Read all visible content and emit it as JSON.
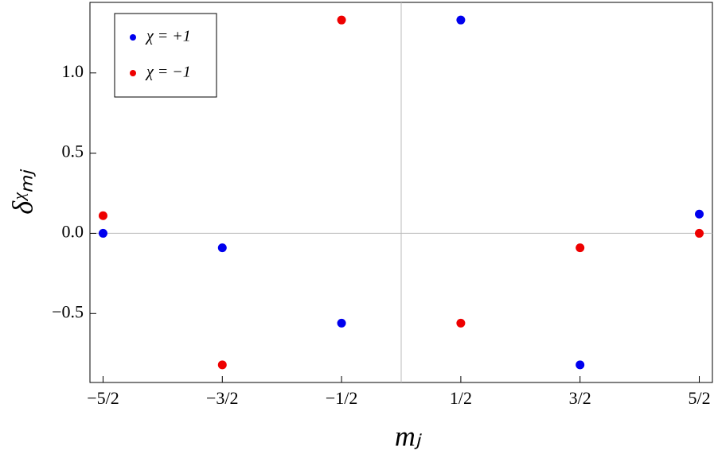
{
  "chart_data": {
    "type": "scatter",
    "x_label": "mⱼ",
    "y_label": "δᵡₘⱼ",
    "xlim": [
      -2.61,
      2.61
    ],
    "ylim": [
      -0.93,
      1.44
    ],
    "xticks": [
      {
        "value": -2.5,
        "label": "−5/2"
      },
      {
        "value": -1.5,
        "label": "−3/2"
      },
      {
        "value": -0.5,
        "label": "−1/2"
      },
      {
        "value": 0.5,
        "label": "1/2"
      },
      {
        "value": 1.5,
        "label": "3/2"
      },
      {
        "value": 2.5,
        "label": "5/2"
      }
    ],
    "yticks": [
      {
        "value": -0.5,
        "label": "−0.5"
      },
      {
        "value": 0.0,
        "label": "0.0"
      },
      {
        "value": 0.5,
        "label": "0.5"
      },
      {
        "value": 1.0,
        "label": "1.0"
      }
    ],
    "series": [
      {
        "name": "χ = +1",
        "color": "#0000ee",
        "x": [
          -2.5,
          -1.5,
          -0.5,
          0.5,
          1.5,
          2.5
        ],
        "values": [
          0.0,
          -0.09,
          -0.56,
          1.33,
          -0.82,
          0.12
        ]
      },
      {
        "name": "χ = −1",
        "color": "#ee0000",
        "x": [
          -2.5,
          -1.5,
          -0.5,
          0.5,
          1.5,
          2.5
        ],
        "values": [
          0.11,
          -0.82,
          1.33,
          -0.56,
          -0.09,
          0.0
        ]
      }
    ],
    "legend": "upper left"
  }
}
